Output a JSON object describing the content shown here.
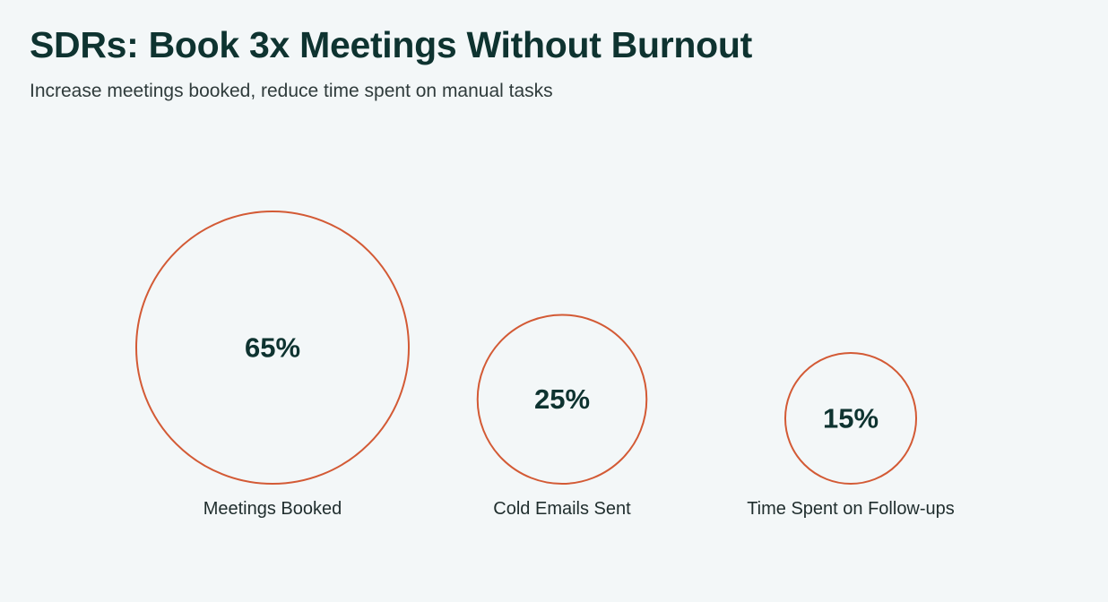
{
  "header": {
    "title": "SDRs: Book 3x Meetings Without Burnout",
    "subtitle": "Increase meetings booked, reduce time spent on manual tasks"
  },
  "colors": {
    "background": "#f3f7f8",
    "circle_stroke": "#d35a35",
    "value_text": "#0e3330",
    "label_text": "#1f2d2d"
  },
  "chart_data": {
    "type": "bubble",
    "title": "SDRs: Book 3x Meetings Without Burnout",
    "subtitle": "Increase meetings booked, reduce time spent on manual tasks",
    "categories": [
      "Meetings Booked",
      "Cold Emails Sent",
      "Time Spent on Follow-ups"
    ],
    "values": [
      65,
      25,
      15
    ],
    "value_labels": [
      "65%",
      "25%",
      "15%"
    ],
    "unit": "%",
    "grid": false,
    "legend": "none"
  }
}
